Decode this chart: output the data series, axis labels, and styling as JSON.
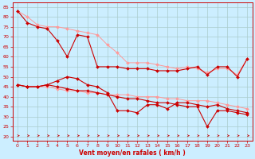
{
  "xlabel": "Vent moyen/en rafales ( km/h )",
  "xlim": [
    -0.5,
    23.5
  ],
  "ylim": [
    18,
    87
  ],
  "yticks": [
    20,
    25,
    30,
    35,
    40,
    45,
    50,
    55,
    60,
    65,
    70,
    75,
    80,
    85
  ],
  "xticks": [
    0,
    1,
    2,
    3,
    4,
    5,
    6,
    7,
    8,
    9,
    10,
    11,
    12,
    13,
    14,
    15,
    16,
    17,
    18,
    19,
    20,
    21,
    22,
    23
  ],
  "bg_color": "#cceeff",
  "grid_color": "#aacccc",
  "axis_color": "#cc0000",
  "line_color_dark": "#cc0000",
  "line_color_light": "#ff9999",
  "series": {
    "light1": [
      83,
      80,
      76,
      75,
      75,
      74,
      73,
      72,
      71,
      66,
      62,
      57,
      57,
      57,
      56,
      55,
      54,
      55,
      54,
      52,
      54,
      54,
      51,
      59
    ],
    "light2": [
      46,
      45,
      45,
      45,
      44,
      43,
      43,
      42,
      42,
      41,
      41,
      41,
      40,
      40,
      40,
      39,
      39,
      38,
      38,
      38,
      37,
      36,
      35,
      34
    ],
    "dark1": [
      83,
      77,
      75,
      74,
      68,
      60,
      71,
      70,
      55,
      55,
      55,
      54,
      54,
      54,
      53,
      53,
      53,
      54,
      55,
      51,
      55,
      55,
      50,
      59
    ],
    "dark2": [
      46,
      45,
      45,
      46,
      48,
      50,
      49,
      46,
      45,
      42,
      33,
      33,
      32,
      36,
      36,
      34,
      37,
      37,
      36,
      35,
      36,
      34,
      33,
      32
    ],
    "dark3": [
      46,
      45,
      45,
      46,
      45,
      44,
      43,
      43,
      42,
      41,
      40,
      39,
      39,
      38,
      37,
      37,
      36,
      35,
      35,
      25,
      33,
      33,
      32,
      31
    ]
  }
}
